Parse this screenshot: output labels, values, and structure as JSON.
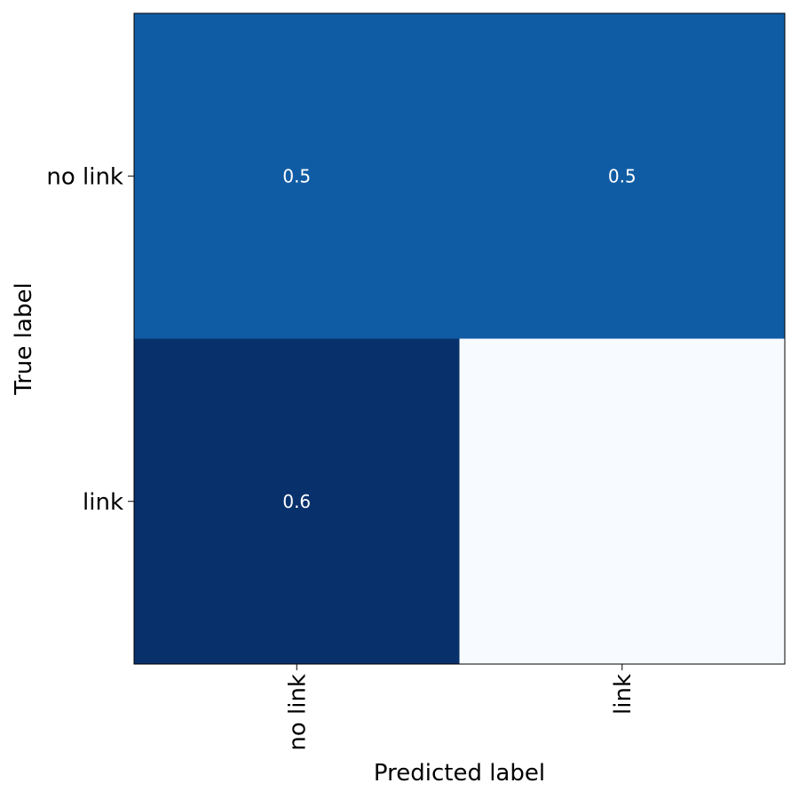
{
  "chart_data": {
    "type": "heatmap",
    "title": "",
    "xlabel": "Predicted label",
    "ylabel": "True label",
    "x_categories": [
      "no link",
      "link"
    ],
    "y_categories": [
      "no link",
      "link"
    ],
    "values": [
      [
        0.5,
        0.5
      ],
      [
        0.6,
        0.0
      ]
    ],
    "cell_labels": [
      [
        "0.5",
        "0.5"
      ],
      [
        "0.6",
        ""
      ]
    ],
    "colormap": "Blues",
    "colormap_stops": [
      "#f7fbff",
      "#deebf7",
      "#c6dbef",
      "#9ecae1",
      "#6baed6",
      "#4292c6",
      "#2171b5",
      "#08519c",
      "#08306b"
    ],
    "color_range": [
      0.0,
      0.6
    ],
    "x_tick_rotation": "vertical",
    "grid": false,
    "legend": "none"
  }
}
